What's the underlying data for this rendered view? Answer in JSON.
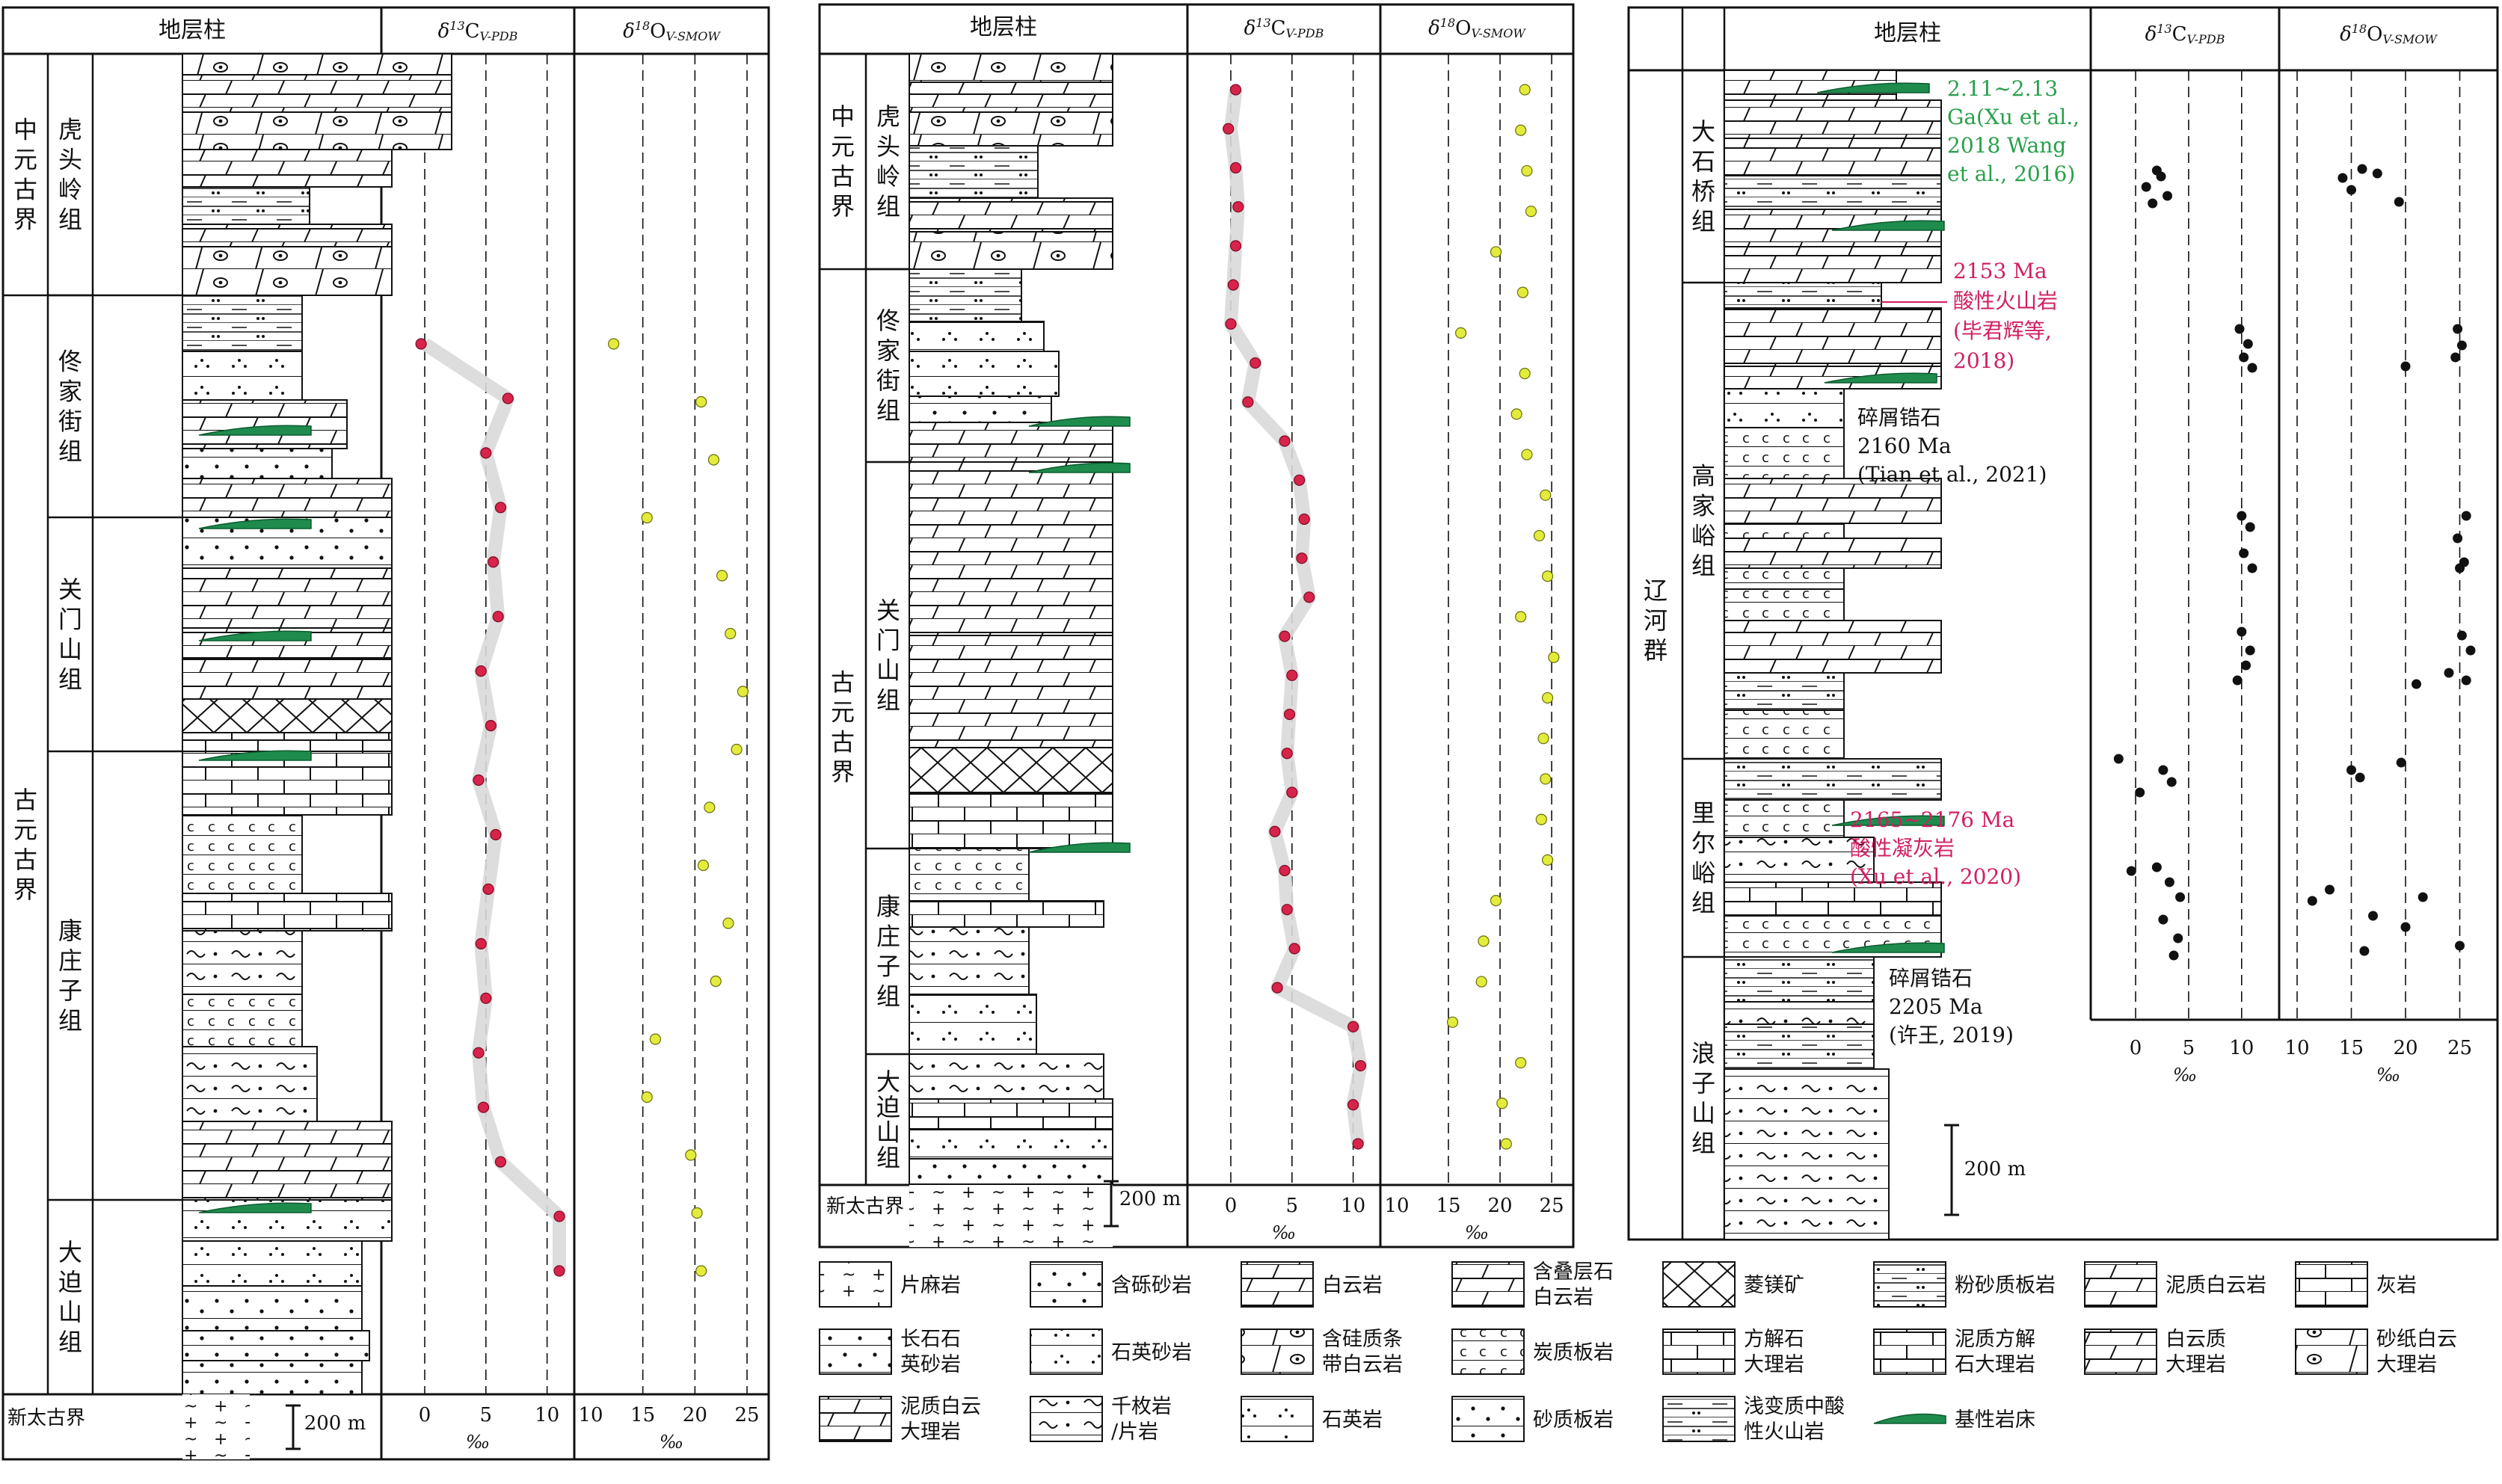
{
  "figure": {
    "header_column": "地层柱",
    "header_c": "δ13C",
    "header_c_sub": "V-PDB",
    "header_o": "δ18O",
    "header_o_sub": "V-SMOW",
    "permil": "‰",
    "scale_bar": "200 m"
  },
  "panels": [
    {
      "id": "left",
      "c_ticks": [
        "0",
        "5",
        "10"
      ],
      "o_ticks": [
        "10",
        "15",
        "20",
        "25"
      ],
      "eras": [
        {
          "text": "中元古界"
        },
        {
          "text": "古元古界"
        },
        {
          "text": "新太古界"
        }
      ],
      "formations": [
        {
          "text": "虎头岭组"
        },
        {
          "text": "佟家街组"
        },
        {
          "text": "关门山组"
        },
        {
          "text": "康庄子组"
        },
        {
          "text": "大迫山组"
        }
      ],
      "c_points": [
        -0.3,
        6.8,
        5.0,
        6.2,
        5.6,
        6.0,
        4.6,
        5.4,
        4.4,
        5.8,
        5.2,
        4.6,
        5.0,
        4.4,
        4.8,
        6.2,
        11.0,
        11.0
      ],
      "o_points": [
        12.2,
        20.6,
        21.8,
        15.4,
        22.6,
        23.4,
        24.6,
        24.0,
        21.4,
        20.8,
        23.2,
        22.0,
        16.2,
        15.4,
        19.6,
        20.2,
        20.6
      ]
    },
    {
      "id": "middle",
      "c_ticks": [
        "0",
        "5",
        "10"
      ],
      "o_ticks": [
        "10",
        "15",
        "20",
        "25"
      ],
      "eras": [
        {
          "text": "中元古界"
        },
        {
          "text": "古元古界"
        },
        {
          "text": "新太古界"
        }
      ],
      "formations": [
        {
          "text": "虎头岭组"
        },
        {
          "text": "佟家街组"
        },
        {
          "text": "关门山组"
        },
        {
          "text": "康庄子组"
        },
        {
          "text": "大迫山组"
        }
      ],
      "c_points": [
        0.4,
        -0.2,
        0.4,
        0.6,
        0.4,
        0.2,
        0.0,
        2.0,
        1.4,
        4.4,
        5.6,
        6.0,
        5.8,
        6.4,
        4.4,
        5.0,
        4.8,
        4.6,
        5.0,
        3.6,
        4.4,
        4.6,
        5.2,
        3.8,
        10.0,
        10.6,
        10.0,
        10.4
      ],
      "o_points": [
        22.4,
        22.0,
        22.6,
        23.0,
        19.6,
        22.2,
        16.2,
        22.4,
        21.6,
        22.6,
        24.4,
        23.8,
        24.6,
        22.0,
        25.2,
        24.6,
        24.2,
        24.4,
        24.0,
        24.6,
        19.6,
        18.4,
        18.2,
        15.4,
        22.0,
        20.2,
        20.6
      ]
    },
    {
      "id": "right",
      "c_ticks": [
        "0",
        "5",
        "10"
      ],
      "o_ticks": [
        "10",
        "15",
        "20",
        "25"
      ],
      "group": {
        "text": "辽河群"
      },
      "formations": [
        {
          "text": "大石桥组"
        },
        {
          "text": "高家峪组"
        },
        {
          "text": "里尔峪组"
        },
        {
          "text": "浪子山组"
        }
      ],
      "annotations": [
        {
          "lines": [
            "2.11~2.13",
            "Ga(Xu et al.,",
            "2018 Wang",
            "et al., 2016)"
          ],
          "color": "#27a04a"
        },
        {
          "lines": [
            "2153 Ma",
            "酸性火山岩",
            "(毕君辉等,",
            "2018)"
          ],
          "color": "#d11f63"
        },
        {
          "lines": [
            "碎屑锆石",
            "2160 Ma",
            "(Tian et al., 2021)"
          ],
          "color": "#111111"
        },
        {
          "lines": [
            "2165~2176 Ma",
            "酸性凝灰岩",
            "(Xu et al., 2020)"
          ],
          "color": "#d11f63"
        },
        {
          "lines": [
            "碎屑锆石",
            "2205 Ma",
            "(许王, 2019)"
          ],
          "color": "#111111"
        }
      ]
    }
  ],
  "legend": [
    {
      "text": "片麻岩"
    },
    {
      "text": "含砾砂岩"
    },
    {
      "text": "白云岩"
    },
    {
      "text": "含叠层石白云岩"
    },
    {
      "text": "菱镁矿"
    },
    {
      "text": "粉砂质板岩"
    },
    {
      "text": "泥质白云岩"
    },
    {
      "text": "灰岩"
    },
    {
      "text": "长石石英砂岩"
    },
    {
      "text": "石英砂岩"
    },
    {
      "text": "含硅质条带白云岩"
    },
    {
      "text": "炭质板岩"
    },
    {
      "text": "方解石大理岩"
    },
    {
      "text": "泥质方解石大理岩"
    },
    {
      "text": "白云质大理岩"
    },
    {
      "text": "砂纸白云大理岩"
    },
    {
      "text": "泥质白云大理岩"
    },
    {
      "text": "千枚岩/片岩"
    },
    {
      "text": "石英岩"
    },
    {
      "text": "砂质板岩"
    },
    {
      "text": "浅变质中酸性火山岩"
    },
    {
      "text": "基性岩床"
    }
  ],
  "colors": {
    "carbon_dot": "#d8234a",
    "oxygen_dot": "#e3ec3a",
    "right_dot": "#111111",
    "sill": "#1f8c4e",
    "trend": "#d9d9d9"
  }
}
